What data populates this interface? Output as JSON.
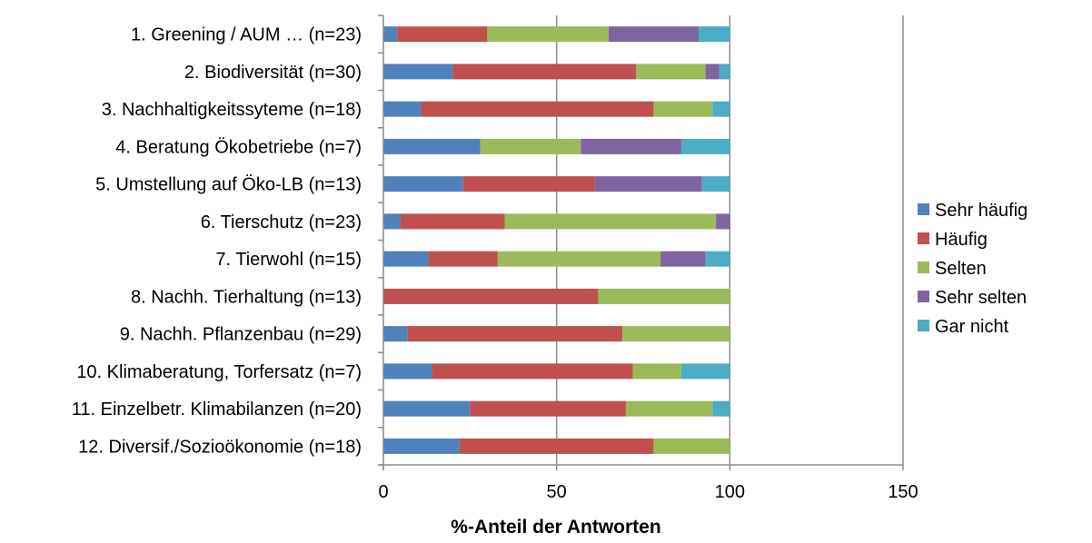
{
  "chart_data": {
    "type": "bar",
    "orientation": "horizontal",
    "stacked": true,
    "title": "",
    "xlabel": "%-Anteil der Antworten",
    "ylabel": "",
    "xlim": [
      0,
      150
    ],
    "xticks": [
      0,
      50,
      100,
      150
    ],
    "grid": "vertical major gridlines",
    "legend_position": "right",
    "categories": [
      "1. Greening / AUM … (n=23)",
      "2. Biodiversität (n=30)",
      "3. Nachhaltigkeitssyteme (n=18)",
      "4. Beratung Ökobetriebe (n=7)",
      "5. Umstellung auf Öko-LB (n=13)",
      "6. Tierschutz (n=23)",
      "7. Tierwohl (n=15)",
      "8. Nachh. Tierhaltung (n=13)",
      "9. Nachh. Pflanzenbau (n=29)",
      "10. Klimaberatung, Torfersatz (n=7)",
      "11. Einzelbetr. Klimabilanzen (n=20)",
      "12. Diversif./Sozioökonomie (n=18)"
    ],
    "series": [
      {
        "name": "Sehr häufig",
        "color": "#4F81BD",
        "values": [
          4,
          20,
          11,
          28,
          23,
          5,
          13,
          0,
          7,
          14,
          25,
          22
        ]
      },
      {
        "name": "Häufig",
        "color": "#C0504D",
        "values": [
          26,
          53,
          67,
          0,
          38,
          30,
          20,
          62,
          62,
          58,
          45,
          56
        ]
      },
      {
        "name": "Selten",
        "color": "#9BBB59",
        "values": [
          35,
          20,
          17,
          29,
          0,
          61,
          47,
          38,
          31,
          14,
          25,
          22
        ]
      },
      {
        "name": "Sehr selten",
        "color": "#8064A2",
        "values": [
          26,
          4,
          0,
          29,
          31,
          4,
          13,
          0,
          0,
          0,
          0,
          0
        ]
      },
      {
        "name": "Gar nicht",
        "color": "#4BACC6",
        "values": [
          9,
          3,
          5,
          14,
          8,
          0,
          7,
          0,
          0,
          14,
          5,
          0
        ]
      }
    ]
  }
}
